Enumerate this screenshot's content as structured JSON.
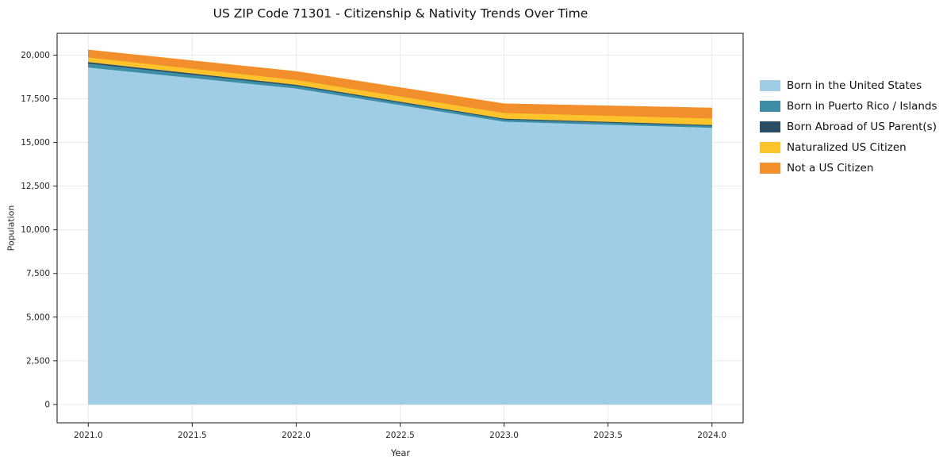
{
  "chart_data": {
    "type": "area",
    "stacked": true,
    "title": "US ZIP Code 71301 - Citizenship & Nativity Trends Over Time",
    "xlabel": "Year",
    "ylabel": "Population",
    "x": [
      2021,
      2022,
      2023,
      2024
    ],
    "series": [
      {
        "name": "Born in the United States",
        "color": "#9fcde6",
        "values": [
          19300,
          18100,
          16200,
          15850
        ]
      },
      {
        "name": "Born in Puerto Rico / Islands",
        "color": "#3d8da6",
        "values": [
          230,
          150,
          120,
          110
        ]
      },
      {
        "name": "Born Abroad of US Parent(s)",
        "color": "#2a4d63",
        "values": [
          80,
          60,
          50,
          50
        ]
      },
      {
        "name": "Naturalized US Citizen",
        "color": "#fcc32c",
        "values": [
          270,
          280,
          330,
          370
        ]
      },
      {
        "name": "Not a US Citizen",
        "color": "#f28e2b",
        "values": [
          420,
          480,
          520,
          600
        ]
      }
    ],
    "xlim": [
      2020.85,
      2024.15
    ],
    "ylim": [
      -1050,
      21250
    ],
    "xticks": {
      "values": [
        2021.0,
        2021.5,
        2022.0,
        2022.5,
        2023.0,
        2023.5,
        2024.0
      ],
      "labels": [
        "2021.0",
        "2021.5",
        "2022.0",
        "2022.5",
        "2023.0",
        "2023.5",
        "2024.0"
      ]
    },
    "yticks": {
      "values": [
        0,
        2500,
        5000,
        7500,
        10000,
        12500,
        15000,
        17500,
        20000
      ],
      "labels": [
        "0",
        "2,500",
        "5,000",
        "7,500",
        "10,000",
        "12,500",
        "15,000",
        "17,500",
        "20,000"
      ]
    },
    "grid": true,
    "legend_position": "right"
  }
}
